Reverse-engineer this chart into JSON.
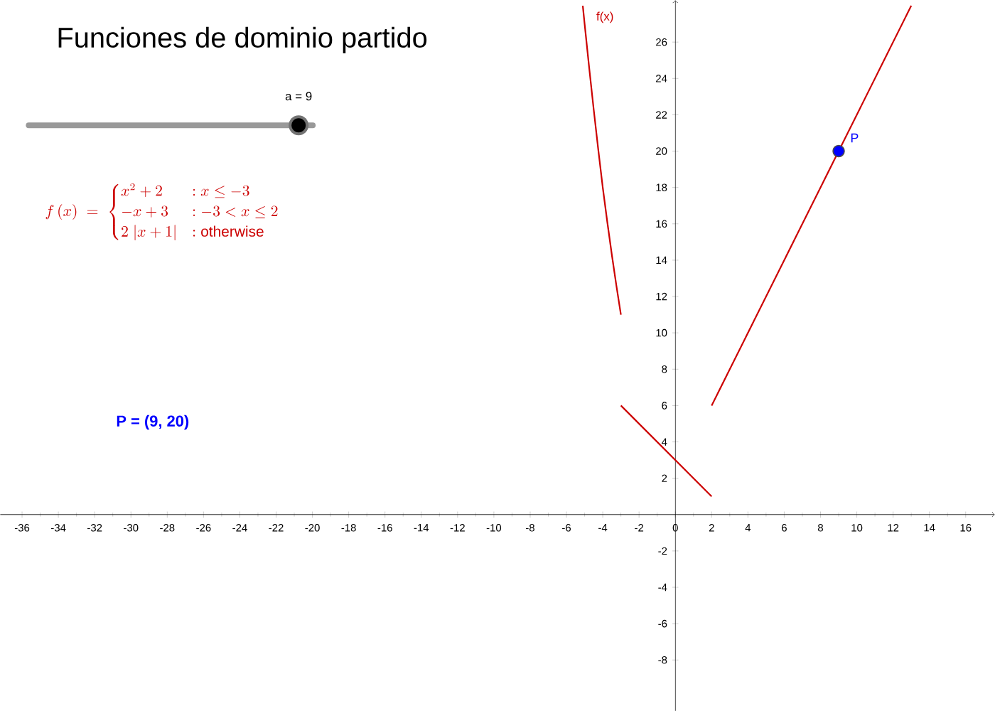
{
  "chart_data": {
    "type": "line",
    "title": "Funciones de dominio partido",
    "xlim": [
      -37.2,
      17.6
    ],
    "ylim": [
      -10.8,
      28.3
    ],
    "xticks": [
      -36,
      -34,
      -32,
      -30,
      -28,
      -26,
      -24,
      -22,
      -20,
      -18,
      -16,
      -14,
      -12,
      -10,
      -8,
      -6,
      -4,
      -2,
      0,
      2,
      4,
      6,
      8,
      10,
      12,
      14,
      16
    ],
    "yticks": [
      -8,
      -6,
      -4,
      -2,
      2,
      4,
      6,
      8,
      10,
      12,
      14,
      16,
      18,
      20,
      22,
      24,
      26
    ],
    "series": [
      {
        "color": "#cc0000",
        "x": [
          -5.1,
          -5,
          -4.75,
          -4.5,
          -4.25,
          -4,
          -3.75,
          -3.5,
          -3.25,
          -3
        ],
        "values": [
          28,
          27,
          24.6,
          22.3,
          20.1,
          18,
          16.1,
          14.3,
          12.6,
          11
        ]
      },
      {
        "color": "#cc0000",
        "x": [
          -3,
          2
        ],
        "values": [
          6,
          1
        ]
      },
      {
        "color": "#cc0000",
        "x": [
          2,
          13
        ],
        "values": [
          6,
          28
        ]
      },
      {
        "type": "scatter",
        "name": "P",
        "color": "#0000ff",
        "marker": "circle",
        "x": [
          9
        ],
        "values": [
          20
        ]
      }
    ],
    "marker": "none",
    "grid": false,
    "annotations": [
      "f\\,(x) \\;=\\; \\begin{cases} x^{2}+2 & : x \\le -3 \\\\ -x+3 & : -3 < x \\le 2 \\\\ 2\\;\\lvert x+1\\rvert & : \\text{otherwise} \\end{cases}",
      "a = 9",
      "P = (9, 20)",
      "f(x)"
    ]
  }
}
